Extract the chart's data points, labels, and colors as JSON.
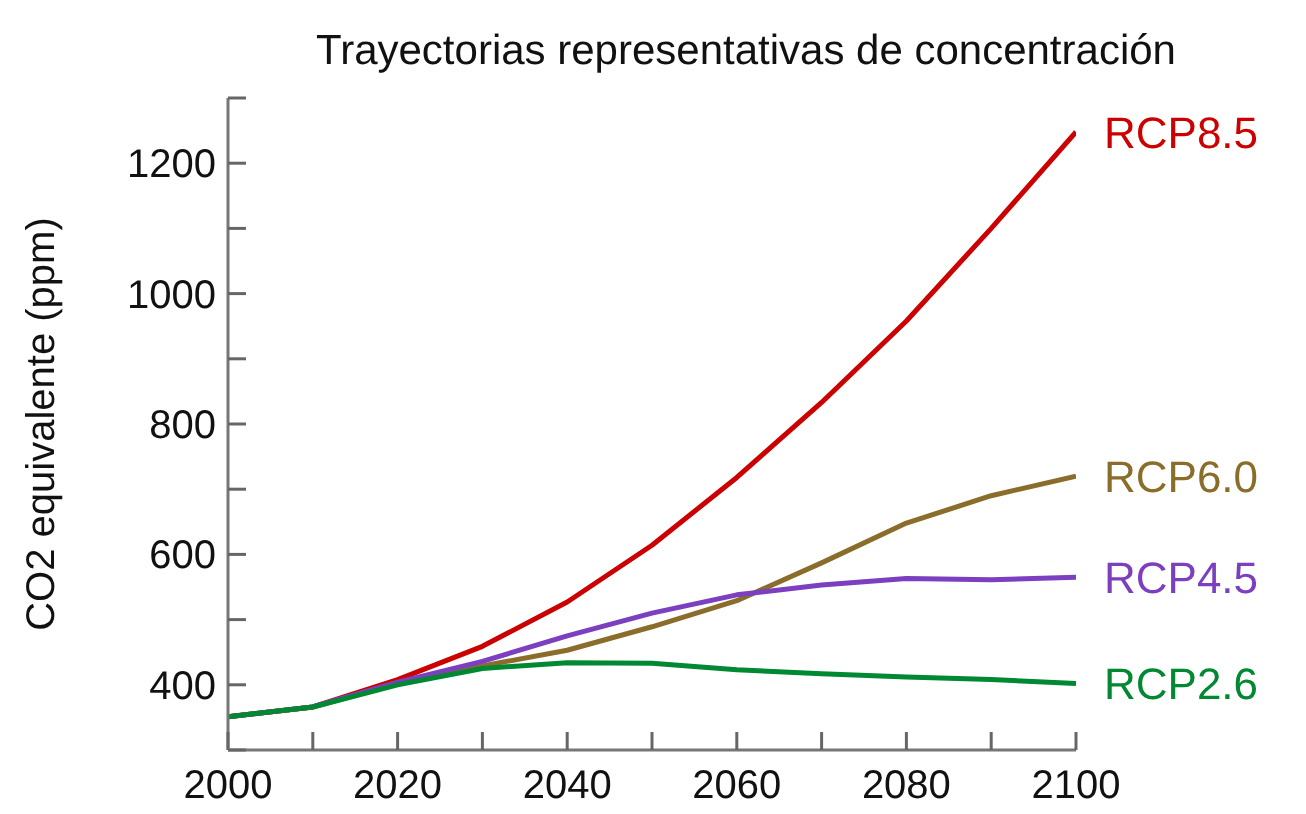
{
  "chart_data": {
    "type": "line",
    "title": "Trayectorias representativas de concentración",
    "ylabel": "CO2 equivalente (ppm)",
    "x": [
      2000,
      2010,
      2020,
      2030,
      2040,
      2050,
      2060,
      2070,
      2080,
      2090,
      2100
    ],
    "series": [
      {
        "name": "RCP8.5",
        "color": "#cc0000",
        "values": [
          351,
          366,
          408,
          459,
          527,
          614,
          718,
          833,
          958,
          1100,
          1248
        ]
      },
      {
        "name": "RCP6.0",
        "color": "#8a6d2b",
        "values": [
          351,
          366,
          402,
          429,
          453,
          489,
          529,
          587,
          648,
          690,
          720
        ]
      },
      {
        "name": "RCP4.5",
        "color": "#7b3fbf",
        "values": [
          351,
          366,
          404,
          436,
          475,
          510,
          538,
          553,
          563,
          561,
          565
        ]
      },
      {
        "name": "RCP2.6",
        "color": "#008833",
        "values": [
          351,
          366,
          400,
          425,
          434,
          433,
          423,
          417,
          412,
          408,
          402
        ]
      }
    ],
    "xlim": [
      2000,
      2100
    ],
    "xticks": [
      2000,
      {
        "value": 2010,
        "label": null
      },
      2020,
      {
        "value": 2030,
        "label": null
      },
      2040,
      {
        "value": 2050,
        "label": null
      },
      2060,
      {
        "value": 2070,
        "label": null
      },
      2080,
      {
        "value": 2090,
        "label": null
      },
      2100
    ],
    "ylim": [
      300,
      1300
    ],
    "yticks": [
      {
        "value": 300,
        "label": null
      },
      400,
      {
        "value": 500,
        "label": null
      },
      600,
      {
        "value": 700,
        "label": null
      },
      800,
      {
        "value": 900,
        "label": null
      },
      1000,
      {
        "value": 1100,
        "label": null
      },
      1200,
      {
        "value": 1300,
        "label": null
      }
    ],
    "grid": false,
    "legend": false,
    "marker": "none",
    "line_style": "solid"
  }
}
